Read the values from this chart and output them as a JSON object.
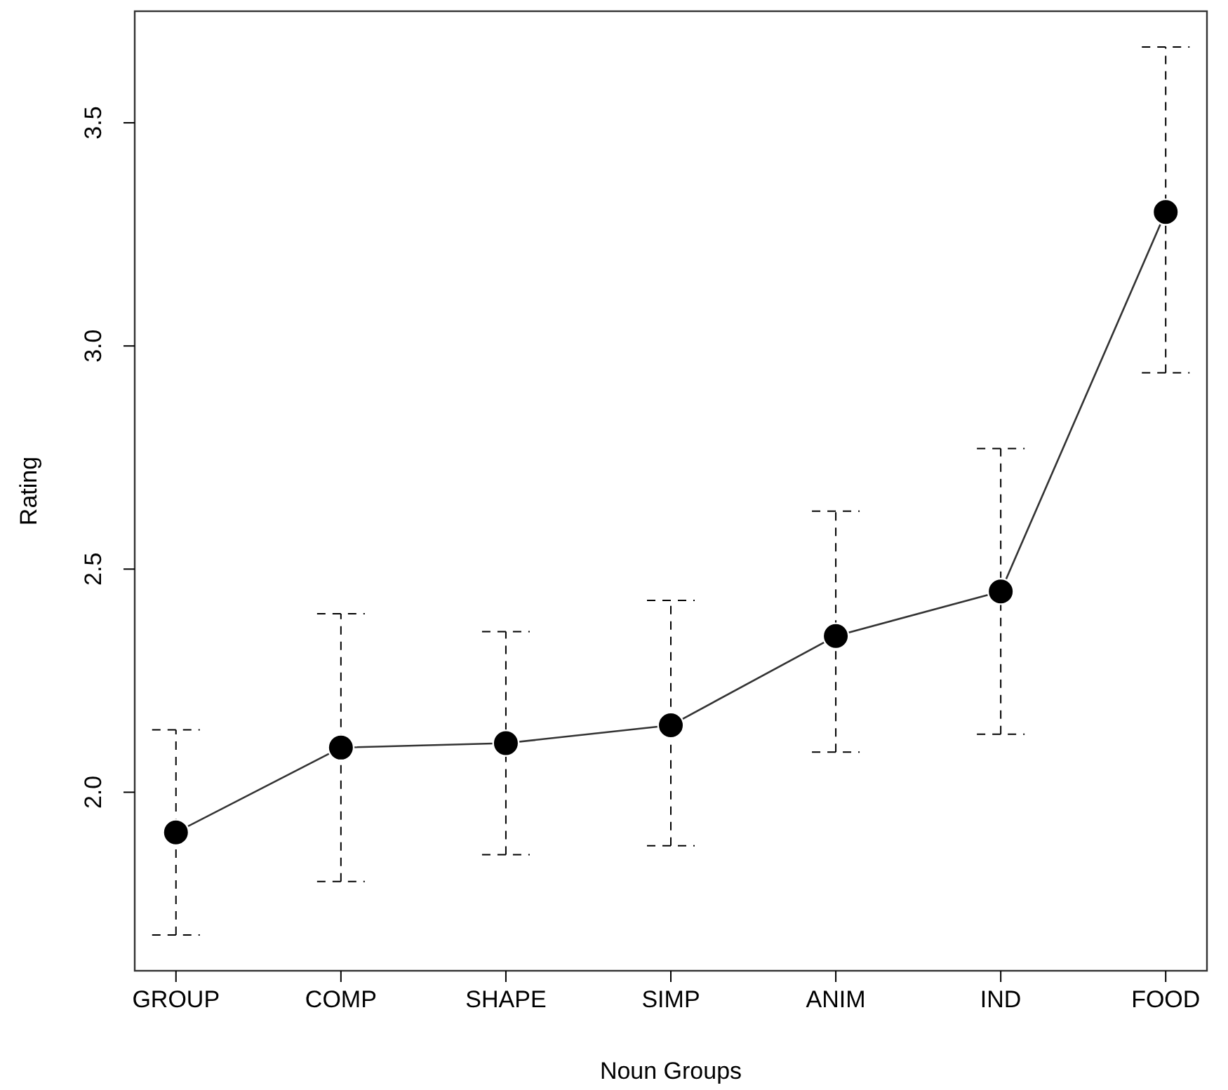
{
  "chart_data": {
    "type": "line",
    "xlabel": "Noun Groups",
    "ylabel": "Rating",
    "categories": [
      "GROUP",
      "COMP",
      "SHAPE",
      "SIMP",
      "ANIM",
      "IND",
      "FOOD"
    ],
    "series": [
      {
        "color": "#000000",
        "values": [
          1.91,
          2.1,
          2.11,
          2.15,
          2.35,
          2.45,
          3.3
        ],
        "errors": [
          [
            1.68,
            2.14
          ],
          [
            1.8,
            2.4
          ],
          [
            1.86,
            2.36
          ],
          [
            1.88,
            2.43
          ],
          [
            2.09,
            2.63
          ],
          [
            2.13,
            2.77
          ],
          [
            2.94,
            3.67
          ]
        ]
      }
    ],
    "ylim": [
      1.6,
      3.75
    ],
    "yticks": [
      {
        "value": 2,
        "label": "2.0"
      },
      2.5,
      {
        "value": 3,
        "label": "3.0"
      },
      3.5
    ],
    "marker": "circle",
    "line_style": "solid"
  }
}
